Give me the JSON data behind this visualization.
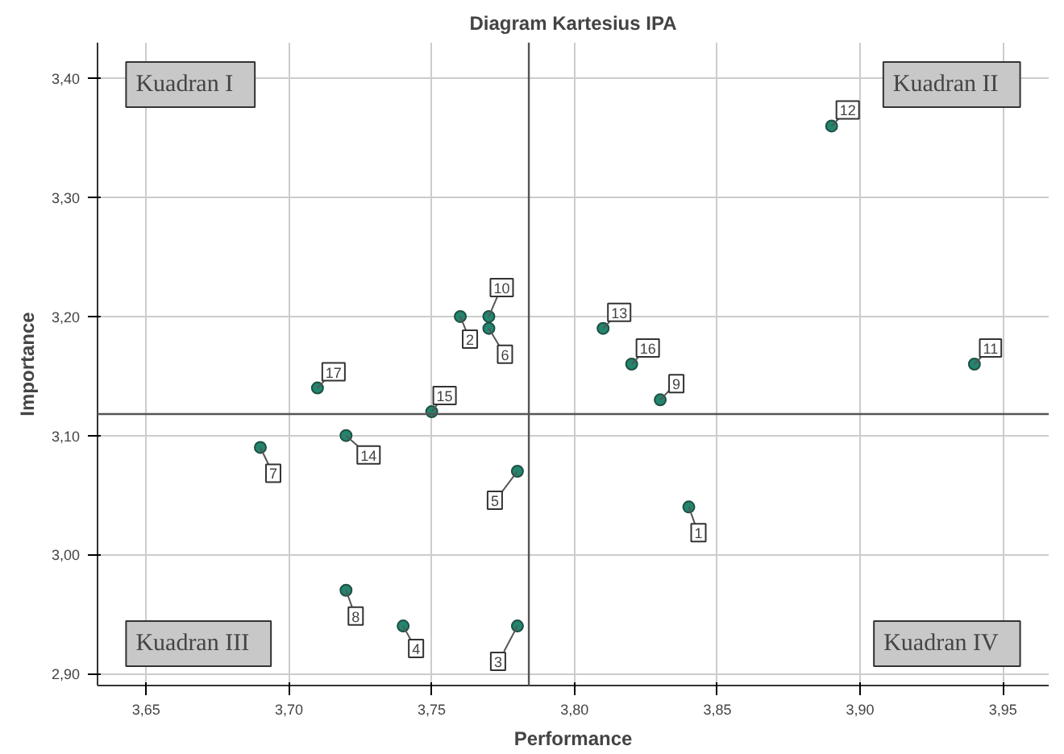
{
  "chart_data": {
    "type": "scatter",
    "title": "Diagram Kartesius IPA",
    "xlabel": "Performance",
    "ylabel": "Importance",
    "x": [
      3.84,
      3.76,
      3.78,
      3.74,
      3.78,
      3.77,
      3.69,
      3.72,
      3.83,
      3.77,
      3.94,
      3.89,
      3.81,
      3.72,
      3.75,
      3.82,
      3.71
    ],
    "series": [
      {
        "color": "#23856d",
        "values": [
          3.04,
          3.2,
          2.94,
          2.94,
          3.07,
          3.19,
          3.09,
          2.97,
          3.13,
          3.2,
          3.16,
          3.36,
          3.19,
          3.1,
          3.12,
          3.16,
          3.14
        ]
      }
    ],
    "marker": "circle",
    "grid": true,
    "xlim": [
      3.633,
      3.966
    ],
    "ylim": [
      2.89,
      3.43
    ],
    "xticks": [
      {
        "value": 3.65,
        "label": "3,65"
      },
      {
        "value": 3.7,
        "label": "3,70"
      },
      {
        "value": 3.75,
        "label": "3,75"
      },
      {
        "value": 3.8,
        "label": "3,80"
      },
      {
        "value": 3.85,
        "label": "3,85"
      },
      {
        "value": 3.9,
        "label": "3,90"
      },
      {
        "value": 3.95,
        "label": "3,95"
      }
    ],
    "yticks": [
      {
        "value": 2.9,
        "label": "2,90"
      },
      {
        "value": 3.0,
        "label": "3,00"
      },
      {
        "value": 3.1,
        "label": "3,10"
      },
      {
        "value": 3.2,
        "label": "3,20"
      },
      {
        "value": 3.3,
        "label": "3,30"
      },
      {
        "value": 3.4,
        "label": "3,40"
      }
    ],
    "ref_lines": [
      {
        "axis": "x",
        "value": 3.784,
        "color": "#555555"
      },
      {
        "axis": "y",
        "value": 3.118,
        "color": "#555555"
      }
    ],
    "annotations": [
      "Kuadran I",
      "Kuadran II",
      "Kuadran III",
      "Kuadran IV",
      {
        "text": "1",
        "x": 3.84,
        "y": 3.04
      },
      {
        "text": "2",
        "x": 3.76,
        "y": 3.2
      },
      {
        "text": "3",
        "x": 3.78,
        "y": 2.94
      },
      {
        "text": "4",
        "x": 3.74,
        "y": 2.94
      },
      {
        "text": "5",
        "x": 3.78,
        "y": 3.07
      },
      {
        "text": "6",
        "x": 3.77,
        "y": 3.19
      },
      {
        "text": "7",
        "x": 3.69,
        "y": 3.09
      },
      {
        "text": "8",
        "x": 3.72,
        "y": 2.97
      },
      {
        "text": "9",
        "x": 3.83,
        "y": 3.13
      },
      {
        "text": "10",
        "x": 3.77,
        "y": 3.2
      },
      {
        "text": "11",
        "x": 3.94,
        "y": 3.16
      },
      {
        "text": "12",
        "x": 3.89,
        "y": 3.36
      },
      {
        "text": "13",
        "x": 3.81,
        "y": 3.19
      },
      {
        "text": "14",
        "x": 3.72,
        "y": 3.1
      },
      {
        "text": "15",
        "x": 3.75,
        "y": 3.12
      },
      {
        "text": "16",
        "x": 3.82,
        "y": 3.16
      },
      {
        "text": "17",
        "x": 3.71,
        "y": 3.14
      }
    ]
  }
}
